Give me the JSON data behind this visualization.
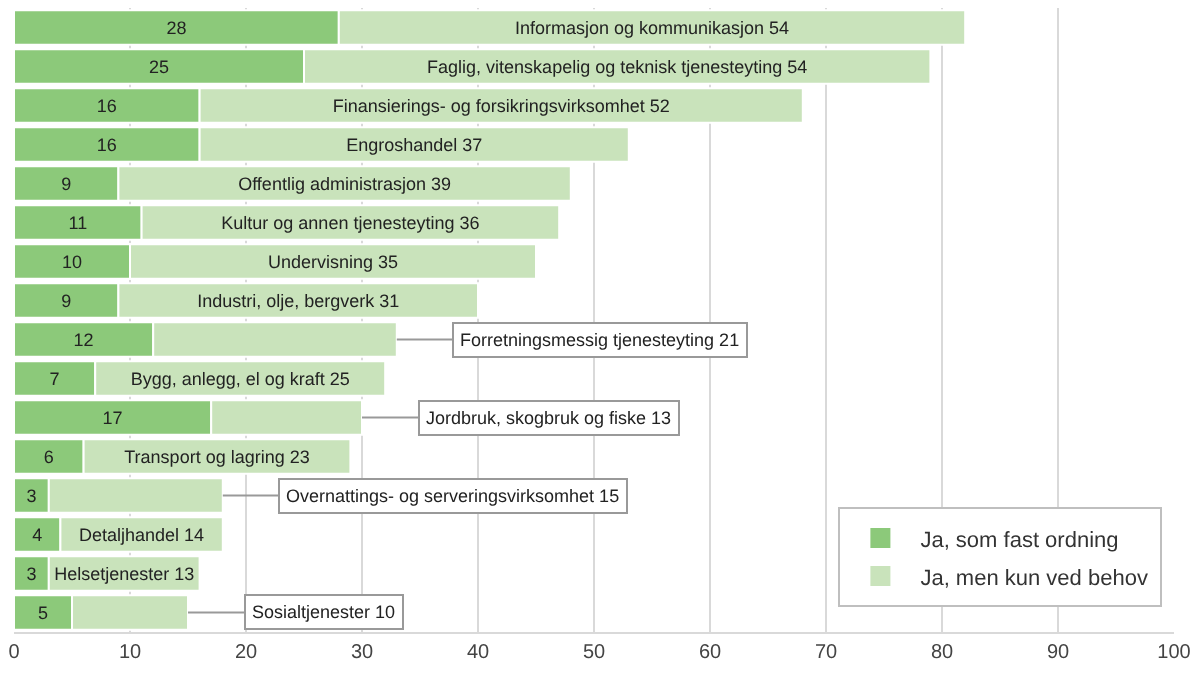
{
  "chart_data": {
    "type": "bar",
    "orientation": "horizontal",
    "stacked": true,
    "tick_labels": "x",
    "categories": [
      null,
      null,
      null,
      null,
      null,
      null,
      null,
      null,
      null,
      null,
      null,
      null,
      null,
      null,
      null,
      null
    ],
    "series": [
      {
        "name": "Ja, som fast ordning",
        "color": "#8cc97a",
        "values": [
          28,
          25,
          16,
          16,
          9,
          11,
          10,
          9,
          12,
          7,
          17,
          6,
          3,
          4,
          3,
          5
        ],
        "value_labels": [
          "28",
          "25",
          "16",
          "16",
          "9",
          "11",
          "10",
          "9",
          "12",
          "7",
          "17",
          "6",
          "3",
          "4",
          "3",
          "5"
        ]
      },
      {
        "name": "Ja, men kun ved behov",
        "color": "#c9e3bb",
        "values": [
          54,
          54,
          52,
          37,
          39,
          36,
          35,
          31,
          21,
          25,
          13,
          23,
          15,
          14,
          13,
          10
        ],
        "value_labels": [
          "Informasjon og kommunikasjon 54",
          "Faglig, vitenskapelig og teknisk tjenesteyting 54",
          "Finansierings- og forsikringsvirksomhet 52",
          "Engroshandel 37",
          "Offentlig administrasjon 39",
          "Kultur og annen tjenesteyting 36",
          "Undervisning 35",
          "Industri, olje, bergverk 31",
          "Forretningsmessig tjenesteyting 21",
          "Bygg, anlegg, el og kraft 25",
          "Jordbruk, skogbruk og fiske 13",
          "Transport og lagring 23",
          "Overnattings- og serveringsvirksomhet 15",
          "Detaljhandel 14",
          "Helsetjenester 13",
          "Sosialtjenester 10"
        ]
      }
    ],
    "xlim": [
      0,
      100
    ],
    "xticks": [
      0,
      10,
      20,
      30,
      40,
      50,
      60,
      70,
      80,
      90,
      100
    ],
    "grid": "x",
    "legend": "bottom right"
  }
}
